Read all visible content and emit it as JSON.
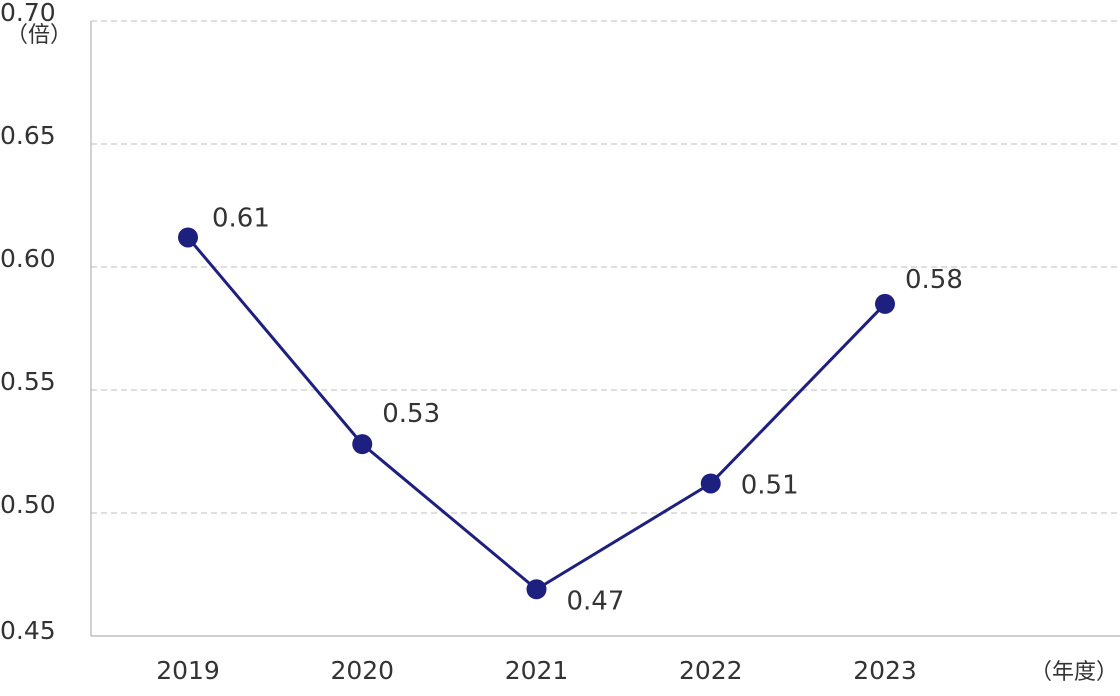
{
  "chart_data": {
    "type": "line",
    "title": "",
    "xlabel": "（年度）",
    "ylabel": "（倍）",
    "categories": [
      "2019",
      "2020",
      "2021",
      "2022",
      "2023"
    ],
    "series": [
      {
        "values": [
          0.612,
          0.528,
          0.469,
          0.512,
          0.585
        ],
        "data_labels": [
          "0.61",
          "0.53",
          "0.47",
          "0.51",
          "0.58"
        ],
        "color": "#1e2080"
      }
    ],
    "ylim": [
      0.45,
      0.7
    ],
    "yticks": [
      0.45,
      0.5,
      0.55,
      0.6,
      0.65,
      0.7
    ],
    "ytick_labels": [
      "0.45",
      "0.50",
      "0.55",
      "0.60",
      "0.65",
      "0.70"
    ],
    "grid": true,
    "legend": "none",
    "colors": {
      "line": "#1e2080",
      "grid": "#cccccc",
      "axis": "#b3b3b3",
      "text": "#333333"
    }
  }
}
